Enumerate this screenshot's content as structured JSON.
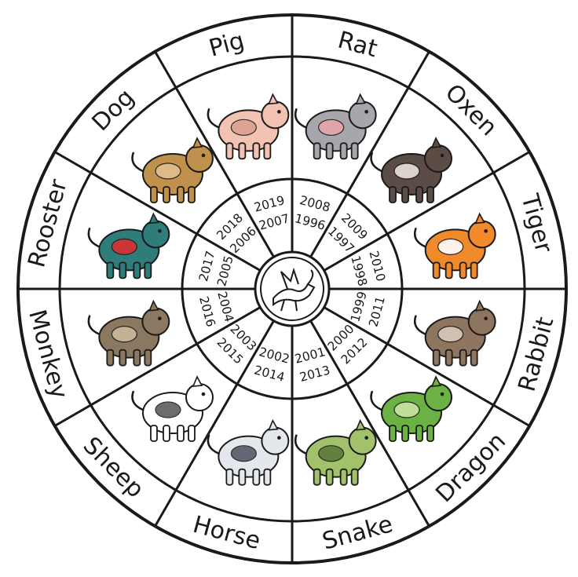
{
  "segments": [
    {
      "animal": "Rat",
      "years": [
        "2008",
        "1996"
      ],
      "colors": {
        "body": "#a7a6ad",
        "accent": "#e7a5a9"
      }
    },
    {
      "animal": "Oxen",
      "years": [
        "2009",
        "1997"
      ],
      "colors": {
        "body": "#5b4c46",
        "accent": "#e8e2d8"
      }
    },
    {
      "animal": "Tiger",
      "years": [
        "2010",
        "1998"
      ],
      "colors": {
        "body": "#f08a2a",
        "accent": "#ffffff"
      }
    },
    {
      "animal": "Rabbit",
      "years": [
        "2011",
        "1999"
      ],
      "colors": {
        "body": "#8e7560",
        "accent": "#d9c9bb"
      }
    },
    {
      "animal": "Dragon",
      "years": [
        "2012",
        "2000"
      ],
      "colors": {
        "body": "#6cb144",
        "accent": "#c8e3a4"
      }
    },
    {
      "animal": "Snake",
      "years": [
        "2013",
        "2001"
      ],
      "colors": {
        "body": "#a3c06a",
        "accent": "#5d7a3a"
      }
    },
    {
      "animal": "Horse",
      "years": [
        "2014",
        "2002"
      ],
      "colors": {
        "body": "#e4e7ec",
        "accent": "#555a66"
      }
    },
    {
      "animal": "Sheep",
      "years": [
        "2015",
        "2003"
      ],
      "colors": {
        "body": "#ffffff",
        "accent": "#5a5e5a"
      }
    },
    {
      "animal": "Monkey",
      "years": [
        "2016",
        "2004"
      ],
      "colors": {
        "body": "#8a7860",
        "accent": "#cdb89a"
      }
    },
    {
      "animal": "Rooster",
      "years": [
        "2017",
        "2005"
      ],
      "colors": {
        "body": "#2f7d7a",
        "accent": "#d92f2f"
      }
    },
    {
      "animal": "Dog",
      "years": [
        "2018",
        "2006"
      ],
      "colors": {
        "body": "#c0904d",
        "accent": "#e0c090"
      }
    },
    {
      "animal": "Pig",
      "years": [
        "2019",
        "2007"
      ],
      "colors": {
        "body": "#f2c3b3",
        "accent": "#dea090"
      }
    }
  ],
  "center_icon": "dragon-icon",
  "colors": {
    "line": "#1a1a1a",
    "background": "#ffffff"
  }
}
